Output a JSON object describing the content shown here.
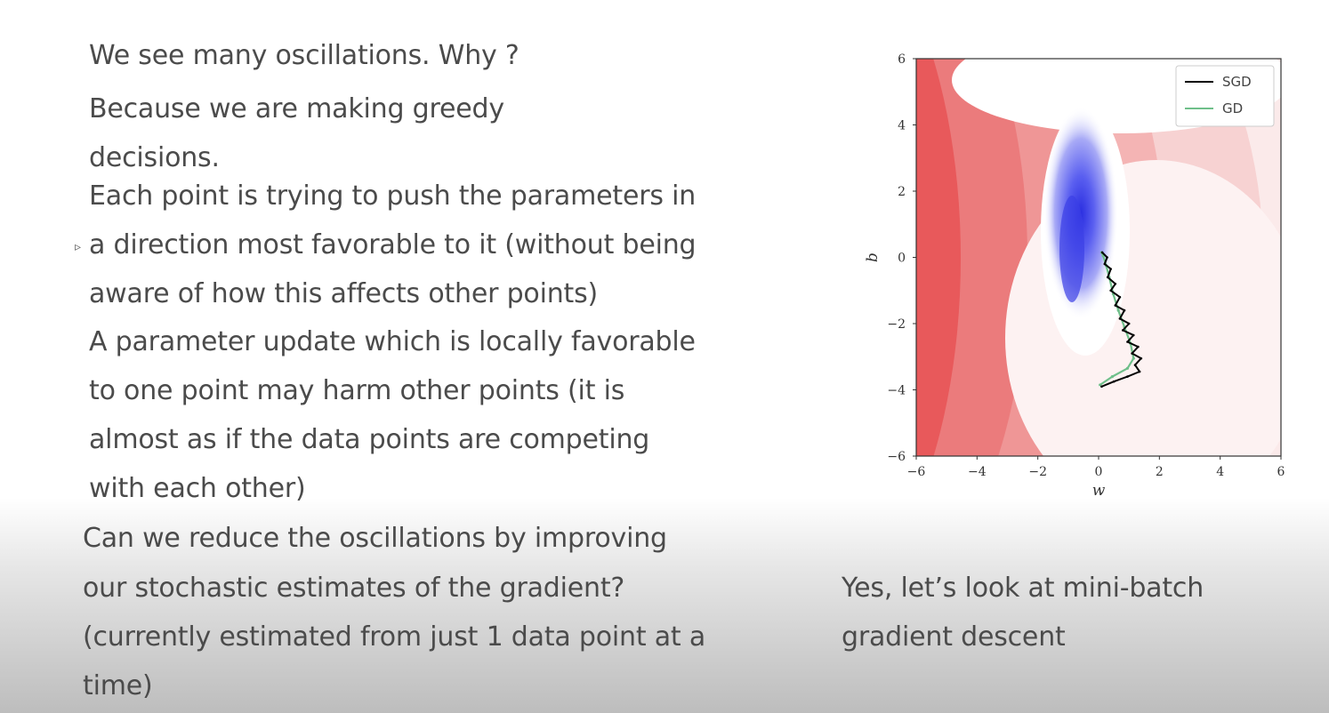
{
  "slide": {
    "left_lines": [
      "We see many oscillations. Why ?",
      "Because we are making greedy",
      "decisions.",
      "Each point is trying to push the parameters in",
      "a direction most favorable to it (without being",
      "aware of how this affects other points)",
      "A parameter update which is locally favorable",
      "to one point may harm other points (it is",
      "almost as if the data points are competing",
      "with each other)"
    ],
    "question_lines": [
      "Can we reduce the oscillations by improving",
      "our stochastic estimates of the gradient?",
      "(currently estimated from just 1 data point at a",
      "time)"
    ],
    "answer_lines": [
      "Yes, let’s look at mini-batch",
      "gradient descent"
    ]
  },
  "chart_data": {
    "type": "line",
    "chart_kind": "contour with optimization trajectories",
    "xlabel": "w",
    "ylabel": "b",
    "xlim": [
      -6,
      6
    ],
    "ylim": [
      -6,
      6
    ],
    "x_ticks": [
      -6,
      -4,
      -2,
      0,
      2,
      4,
      6
    ],
    "y_ticks": [
      -6,
      -4,
      -2,
      0,
      2,
      4,
      6
    ],
    "x_tick_labels": [
      "−6",
      "−4",
      "−2",
      "0",
      "2",
      "4",
      "6"
    ],
    "y_tick_labels": [
      "−6",
      "−4",
      "−2",
      "0",
      "2",
      "4",
      "6"
    ],
    "grid": false,
    "legend_position": "top-right",
    "colormap": "red (high loss) to white to blue (low loss)",
    "colors": {
      "high": "#e8595b",
      "mid": "#ffffff",
      "low": "#2a2ee0",
      "sgd": "#000000",
      "gd": "#6fbf8a"
    },
    "series": [
      {
        "name": "SGD",
        "color": "#000000",
        "points": [
          [
            0.1,
            -3.9
          ],
          [
            0.5,
            -3.75
          ],
          [
            0.95,
            -3.6
          ],
          [
            1.35,
            -3.45
          ],
          [
            1.2,
            -3.25
          ],
          [
            1.4,
            -3.05
          ],
          [
            1.1,
            -2.9
          ],
          [
            1.3,
            -2.7
          ],
          [
            0.95,
            -2.55
          ],
          [
            1.15,
            -2.35
          ],
          [
            0.8,
            -2.2
          ],
          [
            1.0,
            -2.0
          ],
          [
            0.7,
            -1.85
          ],
          [
            0.85,
            -1.6
          ],
          [
            0.55,
            -1.45
          ],
          [
            0.7,
            -1.2
          ],
          [
            0.4,
            -1.0
          ],
          [
            0.55,
            -0.8
          ],
          [
            0.3,
            -0.6
          ],
          [
            0.4,
            -0.35
          ],
          [
            0.2,
            -0.2
          ],
          [
            0.28,
            0.0
          ],
          [
            0.12,
            0.15
          ]
        ]
      },
      {
        "name": "GD",
        "color": "#6fbf8a",
        "points": [
          [
            0.05,
            -3.85
          ],
          [
            0.45,
            -3.6
          ],
          [
            0.95,
            -3.35
          ],
          [
            1.15,
            -3.05
          ],
          [
            1.05,
            -2.6
          ],
          [
            0.85,
            -2.1
          ],
          [
            0.65,
            -1.6
          ],
          [
            0.48,
            -1.1
          ],
          [
            0.35,
            -0.6
          ],
          [
            0.25,
            -0.25
          ],
          [
            0.15,
            0.05
          ],
          [
            0.1,
            0.15
          ]
        ]
      }
    ]
  }
}
